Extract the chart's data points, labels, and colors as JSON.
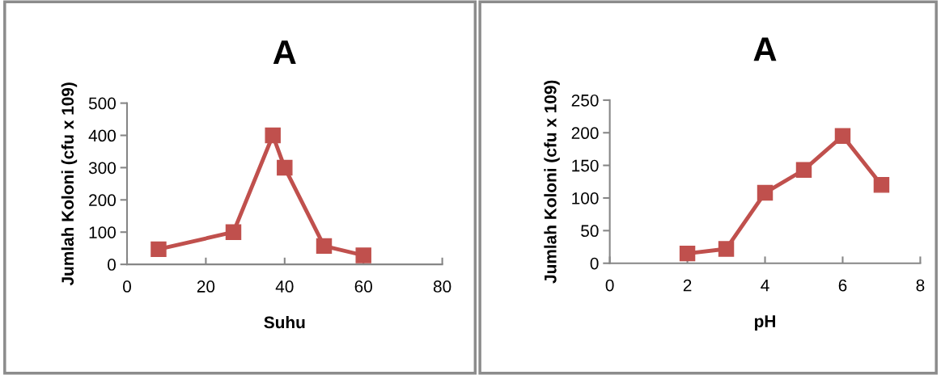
{
  "chart_data": [
    {
      "type": "line",
      "title": "A",
      "xlabel": "Suhu",
      "ylabel": "Jumlah Koloni (cfu x 109)",
      "x": [
        8,
        27,
        37,
        40,
        50,
        60
      ],
      "series": [
        {
          "color": "#c0504d",
          "values": [
            47,
            100,
            400,
            300,
            57,
            28
          ]
        }
      ],
      "xlim": [
        0,
        80
      ],
      "xticks": [
        0,
        20,
        40,
        60,
        80
      ],
      "ylim": [
        0,
        500
      ],
      "yticks": [
        0,
        100,
        200,
        300,
        400,
        500
      ],
      "grid": false,
      "legend": false,
      "marker": "square",
      "line_style": "solid"
    },
    {
      "type": "line",
      "title": "A",
      "xlabel": "pH",
      "ylabel": "Jumlah Koloni (cfu x 109)",
      "x": [
        2,
        3,
        4,
        5,
        6,
        7
      ],
      "series": [
        {
          "color": "#c0504d",
          "values": [
            15,
            22,
            108,
            143,
            195,
            120
          ]
        }
      ],
      "xlim": [
        0,
        8
      ],
      "xticks": [
        0,
        2,
        4,
        6,
        8
      ],
      "ylim": [
        0,
        250
      ],
      "yticks": [
        0,
        50,
        100,
        150,
        200,
        250
      ],
      "grid": false,
      "legend": false,
      "marker": "square",
      "line_style": "solid"
    }
  ]
}
